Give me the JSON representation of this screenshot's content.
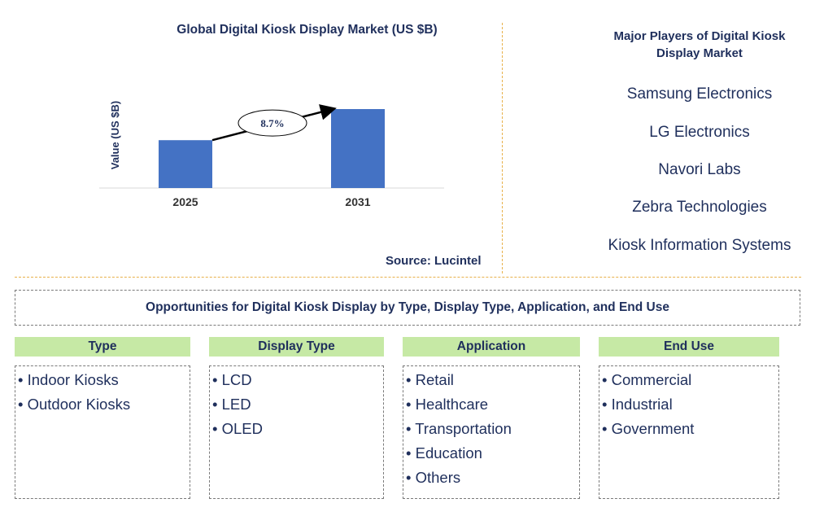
{
  "chart_data": {
    "type": "bar",
    "title": "Global Digital Kiosk Display Market (US $B)",
    "ylabel": "Value (US $B)",
    "xlabel": "",
    "categories": [
      "2025",
      "2031"
    ],
    "values": [
      1.0,
      1.65
    ],
    "ylim": [
      0,
      1.65
    ],
    "annotation": "8.7%",
    "color": "#4472c4",
    "grid": false,
    "legend": "none"
  },
  "source": "Source: Lucintel",
  "players": {
    "title": "Major Players of Digital Kiosk Display Market",
    "items": [
      "Samsung Electronics",
      "LG Electronics",
      "Navori Labs",
      "Zebra Technologies",
      "Kiosk Information Systems"
    ]
  },
  "opportunities": {
    "title": "Opportunities for Digital Kiosk Display by Type, Display Type, Application, and End Use",
    "categories": [
      {
        "header": "Type",
        "items": [
          "• Indoor Kiosks",
          "• Outdoor Kiosks"
        ]
      },
      {
        "header": "Display Type",
        "items": [
          "• LCD",
          "• LED",
          "• OLED"
        ]
      },
      {
        "header": "Application",
        "items": [
          "• Retail",
          "• Healthcare",
          "• Transportation",
          "• Education",
          "• Others"
        ]
      },
      {
        "header": "End Use",
        "items": [
          "• Commercial",
          "• Industrial",
          "• Government"
        ]
      }
    ]
  },
  "colors": {
    "accent_green": "#c6e9a5",
    "divider": "#e8b14a",
    "text": "#1f2f5c",
    "bar": "#4472c4"
  }
}
